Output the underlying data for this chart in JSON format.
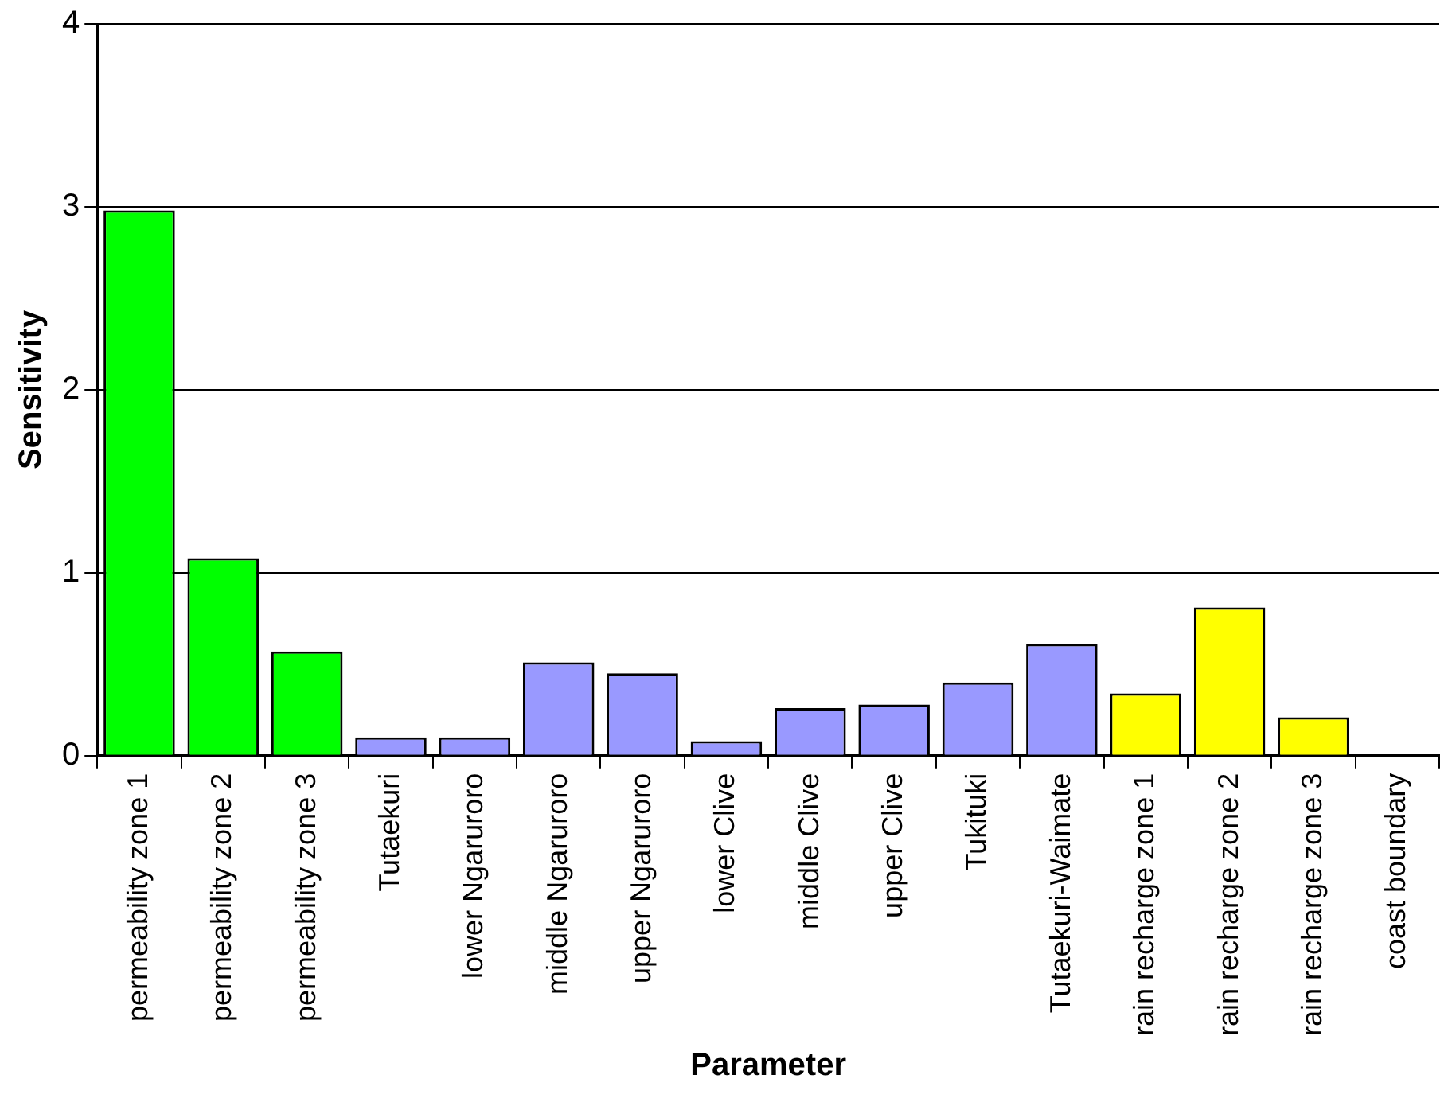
{
  "chart_data": {
    "type": "bar",
    "xlabel": "Parameter",
    "ylabel": "Sensitivity",
    "categories": [
      "permeability zone 1",
      "permeability zone 2",
      "permeability zone 3",
      "Tutaekuri",
      "lower Ngaruroro",
      "middle Ngaruroro",
      "upper Ngaruroro",
      "lower Clive",
      "middle Clive",
      "upper Clive",
      "Tukituki",
      "Tutaekuri-Waimate",
      "rain recharge zone 1",
      "rain recharge zone 2",
      "rain recharge zone 3",
      "coast boundary"
    ],
    "values": [
      2.98,
      1.08,
      0.57,
      0.1,
      0.1,
      0.51,
      0.45,
      0.08,
      0.26,
      0.28,
      0.4,
      0.61,
      0.34,
      0.81,
      0.21,
      0
    ],
    "colors": [
      "#00ff00",
      "#00ff00",
      "#00ff00",
      "#9999ff",
      "#9999ff",
      "#9999ff",
      "#9999ff",
      "#9999ff",
      "#9999ff",
      "#9999ff",
      "#9999ff",
      "#9999ff",
      "#ffff00",
      "#ffff00",
      "#ffff00",
      "#ffff00"
    ],
    "ylim": [
      0,
      4
    ],
    "yticks": [
      0,
      1,
      2,
      3,
      4
    ],
    "grid": "y",
    "legend": false
  }
}
